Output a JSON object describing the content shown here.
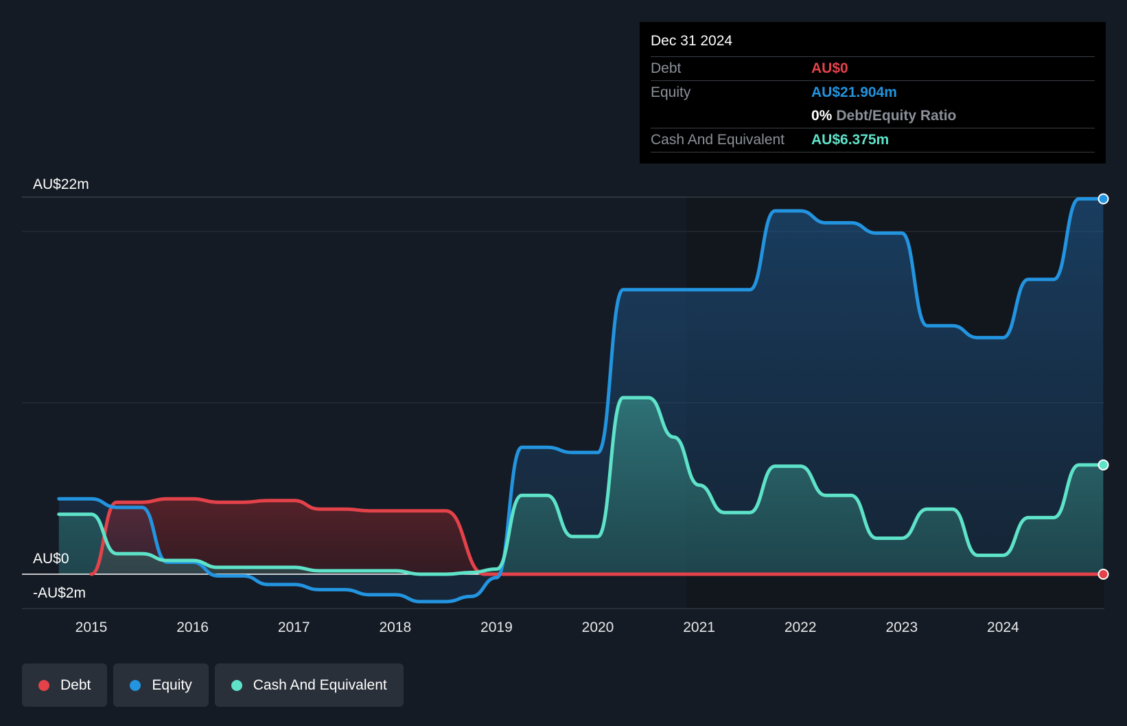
{
  "chart_data": {
    "type": "area",
    "y_ticks": [
      {
        "value": 22,
        "label": "AU$22m"
      },
      {
        "value": 0,
        "label": "AU$0"
      },
      {
        "value": -2,
        "label": "-AU$2m"
      }
    ],
    "ylim": [
      -2,
      22
    ],
    "xlim": [
      2014.68,
      2024.99
    ],
    "x_ticks": [
      "2015",
      "2016",
      "2017",
      "2018",
      "2019",
      "2020",
      "2021",
      "2022",
      "2023",
      "2024"
    ],
    "x_tick_values": [
      2015,
      2016,
      2017,
      2018,
      2019,
      2020,
      2021,
      2022,
      2023,
      2024
    ],
    "gridlines": [
      22,
      20,
      10
    ],
    "series": [
      {
        "name": "Debt",
        "color": "#e4424a",
        "x": [
          2015.0,
          2015.25,
          2015.5,
          2015.75,
          2016.0,
          2016.25,
          2016.5,
          2016.75,
          2017.0,
          2017.25,
          2017.5,
          2017.75,
          2018.0,
          2018.25,
          2018.5,
          2018.88,
          2019.0,
          2024.99
        ],
        "y": [
          0,
          4.2,
          4.2,
          4.4,
          4.4,
          4.2,
          4.2,
          4.3,
          4.3,
          3.8,
          3.8,
          3.7,
          3.7,
          3.7,
          3.7,
          0,
          0,
          0
        ]
      },
      {
        "name": "Equity",
        "color": "#2394df",
        "x": [
          2014.68,
          2015.0,
          2015.25,
          2015.5,
          2015.75,
          2016.0,
          2016.25,
          2016.5,
          2016.75,
          2017.0,
          2017.25,
          2017.5,
          2017.75,
          2018.0,
          2018.25,
          2018.5,
          2018.75,
          2019.0,
          2019.25,
          2019.5,
          2019.75,
          2020.0,
          2020.25,
          2020.5,
          2020.75,
          2021.0,
          2021.25,
          2021.5,
          2021.75,
          2022.0,
          2022.25,
          2022.5,
          2022.75,
          2023.0,
          2023.25,
          2023.5,
          2023.75,
          2024.0,
          2024.25,
          2024.5,
          2024.75,
          2024.99
        ],
        "y": [
          4.4,
          4.4,
          3.9,
          3.9,
          0.7,
          0.7,
          -0.1,
          -0.1,
          -0.6,
          -0.6,
          -0.9,
          -0.9,
          -1.2,
          -1.2,
          -1.6,
          -1.6,
          -1.3,
          -0.2,
          7.4,
          7.4,
          7.1,
          7.1,
          16.6,
          16.6,
          16.6,
          16.6,
          16.6,
          16.6,
          21.2,
          21.2,
          20.5,
          20.5,
          19.9,
          19.9,
          14.5,
          14.5,
          13.8,
          13.8,
          17.2,
          17.2,
          21.9,
          21.9
        ]
      },
      {
        "name": "Cash And Equivalent",
        "color": "#5ee3c9",
        "x": [
          2014.68,
          2015.0,
          2015.25,
          2015.5,
          2015.75,
          2016.0,
          2016.25,
          2016.5,
          2016.75,
          2017.0,
          2017.25,
          2017.5,
          2017.75,
          2018.0,
          2018.25,
          2018.5,
          2018.75,
          2019.0,
          2019.25,
          2019.5,
          2019.75,
          2020.0,
          2020.25,
          2020.5,
          2020.75,
          2021.0,
          2021.25,
          2021.5,
          2021.75,
          2022.0,
          2022.25,
          2022.5,
          2022.75,
          2023.0,
          2023.25,
          2023.5,
          2023.75,
          2024.0,
          2024.25,
          2024.5,
          2024.75,
          2024.99
        ],
        "y": [
          3.5,
          3.5,
          1.2,
          1.2,
          0.8,
          0.8,
          0.4,
          0.4,
          0.4,
          0.4,
          0.2,
          0.2,
          0.2,
          0.2,
          0.0,
          0.0,
          0.1,
          0.3,
          4.6,
          4.6,
          2.2,
          2.2,
          10.3,
          10.3,
          8.0,
          5.2,
          3.6,
          3.6,
          6.3,
          6.3,
          4.6,
          4.6,
          2.1,
          2.1,
          3.8,
          3.8,
          1.1,
          1.1,
          3.3,
          3.3,
          6.375,
          6.375
        ]
      }
    ]
  },
  "tooltip": {
    "date": "Dec 31 2024",
    "debt_label": "Debt",
    "debt_value": "AU$0",
    "equity_label": "Equity",
    "equity_value": "AU$21.904m",
    "ratio_pct": "0%",
    "ratio_label": "Debt/Equity Ratio",
    "cash_label": "Cash And Equivalent",
    "cash_value": "AU$6.375m"
  },
  "legend": [
    {
      "label": "Debt",
      "color": "#e4424a"
    },
    {
      "label": "Equity",
      "color": "#2394df"
    },
    {
      "label": "Cash And Equivalent",
      "color": "#5ee3c9"
    }
  ],
  "colors": {
    "background": "#151b24",
    "debt": "#e4424a",
    "equity": "#2394df",
    "cash": "#5ee3c9"
  }
}
